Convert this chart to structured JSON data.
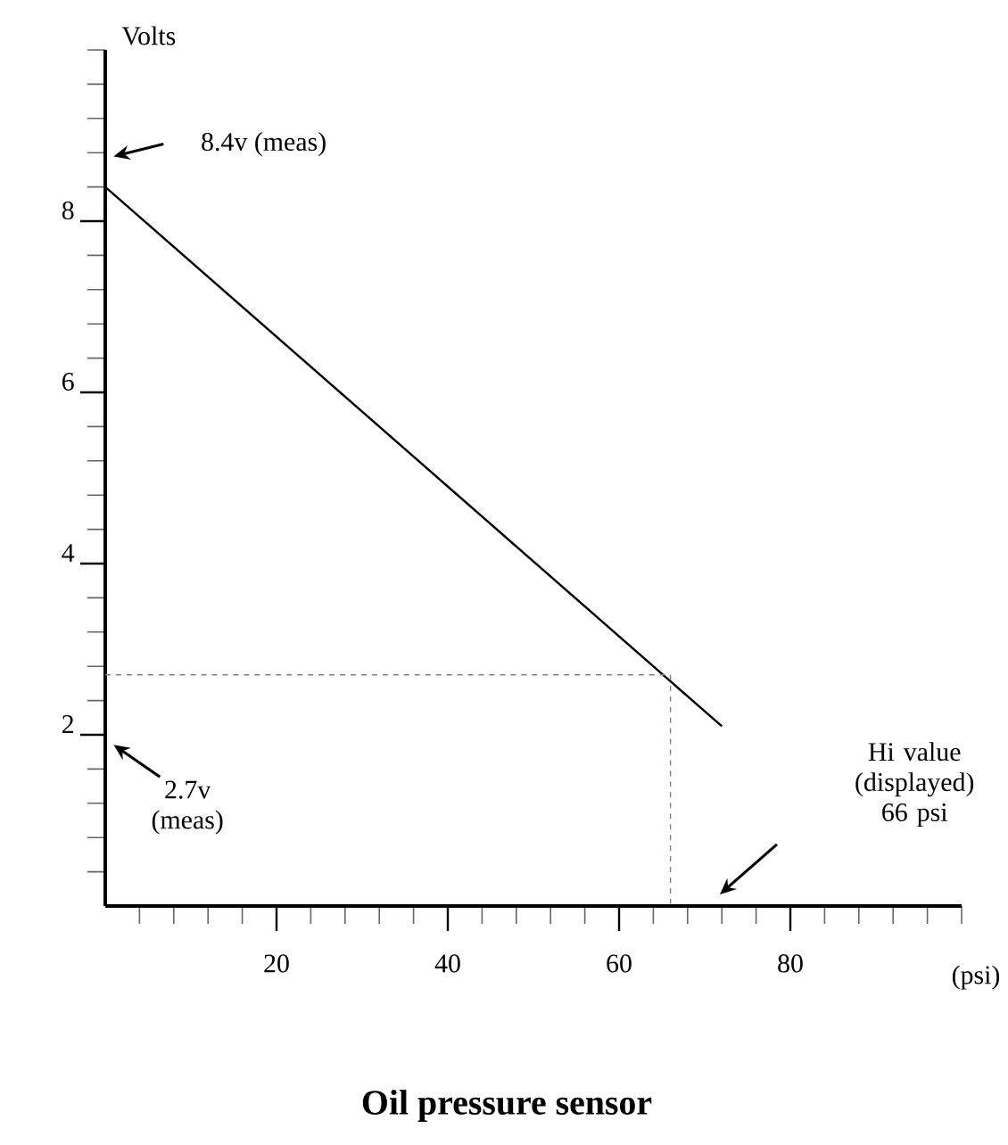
{
  "chart_data": {
    "type": "line",
    "title": "Oil pressure sensor",
    "xlabel": "(psi)",
    "ylabel": "Volts",
    "series": [
      {
        "x": [
          0,
          72
        ],
        "values": [
          8.4,
          2.1
        ],
        "color": "#000000",
        "line_style": "solid"
      },
      {
        "x": [
          0,
          66,
          66
        ],
        "values": [
          2.7,
          2.7,
          0
        ],
        "color": "#808080",
        "line_style": "dashed"
      }
    ],
    "xlim": [
      0,
      100
    ],
    "ylim": [
      0,
      10
    ],
    "xticks": [
      {
        "value": 4,
        "label": null
      },
      {
        "value": 8,
        "label": null
      },
      {
        "value": 12,
        "label": null
      },
      {
        "value": 16,
        "label": null
      },
      20,
      {
        "value": 24,
        "label": null
      },
      {
        "value": 28,
        "label": null
      },
      {
        "value": 32,
        "label": null
      },
      {
        "value": 36,
        "label": null
      },
      40,
      {
        "value": 44,
        "label": null
      },
      {
        "value": 48,
        "label": null
      },
      {
        "value": 52,
        "label": null
      },
      {
        "value": 56,
        "label": null
      },
      60,
      {
        "value": 64,
        "label": null
      },
      {
        "value": 68,
        "label": null
      },
      {
        "value": 72,
        "label": null
      },
      {
        "value": 76,
        "label": null
      },
      80,
      {
        "value": 84,
        "label": null
      },
      {
        "value": 88,
        "label": null
      },
      {
        "value": 92,
        "label": null
      },
      {
        "value": 96,
        "label": null
      },
      {
        "value": 100,
        "label": null
      }
    ],
    "yticks": [
      {
        "value": 0.4,
        "label": null
      },
      {
        "value": 0.8,
        "label": null
      },
      {
        "value": 1.2,
        "label": null
      },
      {
        "value": 1.6,
        "label": null
      },
      2,
      {
        "value": 2.4,
        "label": null
      },
      {
        "value": 2.8,
        "label": null
      },
      {
        "value": 3.2,
        "label": null
      },
      {
        "value": 3.6,
        "label": null
      },
      4,
      {
        "value": 4.4,
        "label": null
      },
      {
        "value": 4.8,
        "label": null
      },
      {
        "value": 5.2,
        "label": null
      },
      {
        "value": 5.6,
        "label": null
      },
      6,
      {
        "value": 6.4,
        "label": null
      },
      {
        "value": 6.8,
        "label": null
      },
      {
        "value": 7.2,
        "label": null
      },
      {
        "value": 7.6,
        "label": null
      },
      8,
      {
        "value": 8.4,
        "label": null
      },
      {
        "value": 8.8,
        "label": null
      },
      {
        "value": 9.2,
        "label": null
      },
      {
        "value": 9.6,
        "label": null
      },
      {
        "value": 10,
        "label": null
      }
    ],
    "annotations": [
      "8.4v (meas)",
      "2.7v (meas)",
      "Hi value (displayed) 66 psi"
    ]
  }
}
